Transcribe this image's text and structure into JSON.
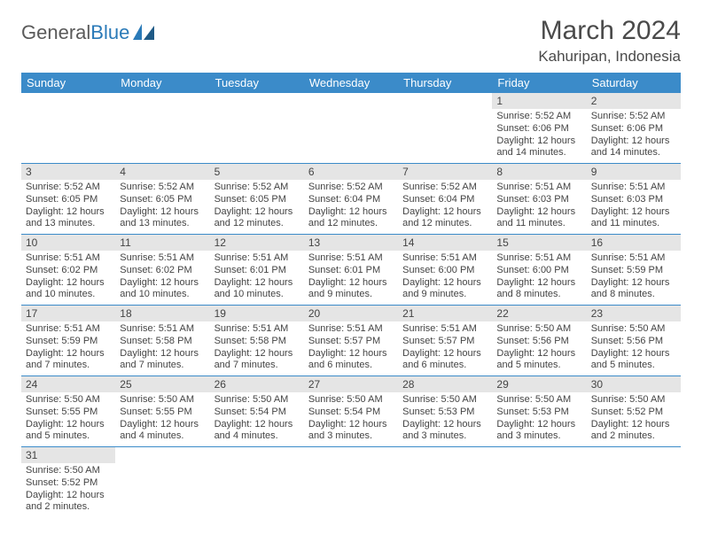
{
  "logo": {
    "text1": "General",
    "text2": "Blue"
  },
  "title": "March 2024",
  "location": "Kahuripan, Indonesia",
  "colors": {
    "header_bg": "#3b8bc9",
    "header_text": "#ffffff",
    "day_strip_bg": "#e5e5e5",
    "border": "#3b8bc9",
    "text": "#444444",
    "logo_gray": "#5a5a5a",
    "logo_blue": "#2a7ab8"
  },
  "typography": {
    "title_fontsize": 30,
    "location_fontsize": 17,
    "weekday_fontsize": 13,
    "cell_fontsize": 11
  },
  "weekdays": [
    "Sunday",
    "Monday",
    "Tuesday",
    "Wednesday",
    "Thursday",
    "Friday",
    "Saturday"
  ],
  "weeks": [
    [
      {
        "day": "",
        "sunrise": "",
        "sunset": "",
        "daylight": ""
      },
      {
        "day": "",
        "sunrise": "",
        "sunset": "",
        "daylight": ""
      },
      {
        "day": "",
        "sunrise": "",
        "sunset": "",
        "daylight": ""
      },
      {
        "day": "",
        "sunrise": "",
        "sunset": "",
        "daylight": ""
      },
      {
        "day": "",
        "sunrise": "",
        "sunset": "",
        "daylight": ""
      },
      {
        "day": "1",
        "sunrise": "Sunrise: 5:52 AM",
        "sunset": "Sunset: 6:06 PM",
        "daylight": "Daylight: 12 hours and 14 minutes."
      },
      {
        "day": "2",
        "sunrise": "Sunrise: 5:52 AM",
        "sunset": "Sunset: 6:06 PM",
        "daylight": "Daylight: 12 hours and 14 minutes."
      }
    ],
    [
      {
        "day": "3",
        "sunrise": "Sunrise: 5:52 AM",
        "sunset": "Sunset: 6:05 PM",
        "daylight": "Daylight: 12 hours and 13 minutes."
      },
      {
        "day": "4",
        "sunrise": "Sunrise: 5:52 AM",
        "sunset": "Sunset: 6:05 PM",
        "daylight": "Daylight: 12 hours and 13 minutes."
      },
      {
        "day": "5",
        "sunrise": "Sunrise: 5:52 AM",
        "sunset": "Sunset: 6:05 PM",
        "daylight": "Daylight: 12 hours and 12 minutes."
      },
      {
        "day": "6",
        "sunrise": "Sunrise: 5:52 AM",
        "sunset": "Sunset: 6:04 PM",
        "daylight": "Daylight: 12 hours and 12 minutes."
      },
      {
        "day": "7",
        "sunrise": "Sunrise: 5:52 AM",
        "sunset": "Sunset: 6:04 PM",
        "daylight": "Daylight: 12 hours and 12 minutes."
      },
      {
        "day": "8",
        "sunrise": "Sunrise: 5:51 AM",
        "sunset": "Sunset: 6:03 PM",
        "daylight": "Daylight: 12 hours and 11 minutes."
      },
      {
        "day": "9",
        "sunrise": "Sunrise: 5:51 AM",
        "sunset": "Sunset: 6:03 PM",
        "daylight": "Daylight: 12 hours and 11 minutes."
      }
    ],
    [
      {
        "day": "10",
        "sunrise": "Sunrise: 5:51 AM",
        "sunset": "Sunset: 6:02 PM",
        "daylight": "Daylight: 12 hours and 10 minutes."
      },
      {
        "day": "11",
        "sunrise": "Sunrise: 5:51 AM",
        "sunset": "Sunset: 6:02 PM",
        "daylight": "Daylight: 12 hours and 10 minutes."
      },
      {
        "day": "12",
        "sunrise": "Sunrise: 5:51 AM",
        "sunset": "Sunset: 6:01 PM",
        "daylight": "Daylight: 12 hours and 10 minutes."
      },
      {
        "day": "13",
        "sunrise": "Sunrise: 5:51 AM",
        "sunset": "Sunset: 6:01 PM",
        "daylight": "Daylight: 12 hours and 9 minutes."
      },
      {
        "day": "14",
        "sunrise": "Sunrise: 5:51 AM",
        "sunset": "Sunset: 6:00 PM",
        "daylight": "Daylight: 12 hours and 9 minutes."
      },
      {
        "day": "15",
        "sunrise": "Sunrise: 5:51 AM",
        "sunset": "Sunset: 6:00 PM",
        "daylight": "Daylight: 12 hours and 8 minutes."
      },
      {
        "day": "16",
        "sunrise": "Sunrise: 5:51 AM",
        "sunset": "Sunset: 5:59 PM",
        "daylight": "Daylight: 12 hours and 8 minutes."
      }
    ],
    [
      {
        "day": "17",
        "sunrise": "Sunrise: 5:51 AM",
        "sunset": "Sunset: 5:59 PM",
        "daylight": "Daylight: 12 hours and 7 minutes."
      },
      {
        "day": "18",
        "sunrise": "Sunrise: 5:51 AM",
        "sunset": "Sunset: 5:58 PM",
        "daylight": "Daylight: 12 hours and 7 minutes."
      },
      {
        "day": "19",
        "sunrise": "Sunrise: 5:51 AM",
        "sunset": "Sunset: 5:58 PM",
        "daylight": "Daylight: 12 hours and 7 minutes."
      },
      {
        "day": "20",
        "sunrise": "Sunrise: 5:51 AM",
        "sunset": "Sunset: 5:57 PM",
        "daylight": "Daylight: 12 hours and 6 minutes."
      },
      {
        "day": "21",
        "sunrise": "Sunrise: 5:51 AM",
        "sunset": "Sunset: 5:57 PM",
        "daylight": "Daylight: 12 hours and 6 minutes."
      },
      {
        "day": "22",
        "sunrise": "Sunrise: 5:50 AM",
        "sunset": "Sunset: 5:56 PM",
        "daylight": "Daylight: 12 hours and 5 minutes."
      },
      {
        "day": "23",
        "sunrise": "Sunrise: 5:50 AM",
        "sunset": "Sunset: 5:56 PM",
        "daylight": "Daylight: 12 hours and 5 minutes."
      }
    ],
    [
      {
        "day": "24",
        "sunrise": "Sunrise: 5:50 AM",
        "sunset": "Sunset: 5:55 PM",
        "daylight": "Daylight: 12 hours and 5 minutes."
      },
      {
        "day": "25",
        "sunrise": "Sunrise: 5:50 AM",
        "sunset": "Sunset: 5:55 PM",
        "daylight": "Daylight: 12 hours and 4 minutes."
      },
      {
        "day": "26",
        "sunrise": "Sunrise: 5:50 AM",
        "sunset": "Sunset: 5:54 PM",
        "daylight": "Daylight: 12 hours and 4 minutes."
      },
      {
        "day": "27",
        "sunrise": "Sunrise: 5:50 AM",
        "sunset": "Sunset: 5:54 PM",
        "daylight": "Daylight: 12 hours and 3 minutes."
      },
      {
        "day": "28",
        "sunrise": "Sunrise: 5:50 AM",
        "sunset": "Sunset: 5:53 PM",
        "daylight": "Daylight: 12 hours and 3 minutes."
      },
      {
        "day": "29",
        "sunrise": "Sunrise: 5:50 AM",
        "sunset": "Sunset: 5:53 PM",
        "daylight": "Daylight: 12 hours and 3 minutes."
      },
      {
        "day": "30",
        "sunrise": "Sunrise: 5:50 AM",
        "sunset": "Sunset: 5:52 PM",
        "daylight": "Daylight: 12 hours and 2 minutes."
      }
    ],
    [
      {
        "day": "31",
        "sunrise": "Sunrise: 5:50 AM",
        "sunset": "Sunset: 5:52 PM",
        "daylight": "Daylight: 12 hours and 2 minutes."
      },
      {
        "day": "",
        "sunrise": "",
        "sunset": "",
        "daylight": ""
      },
      {
        "day": "",
        "sunrise": "",
        "sunset": "",
        "daylight": ""
      },
      {
        "day": "",
        "sunrise": "",
        "sunset": "",
        "daylight": ""
      },
      {
        "day": "",
        "sunrise": "",
        "sunset": "",
        "daylight": ""
      },
      {
        "day": "",
        "sunrise": "",
        "sunset": "",
        "daylight": ""
      },
      {
        "day": "",
        "sunrise": "",
        "sunset": "",
        "daylight": ""
      }
    ]
  ]
}
